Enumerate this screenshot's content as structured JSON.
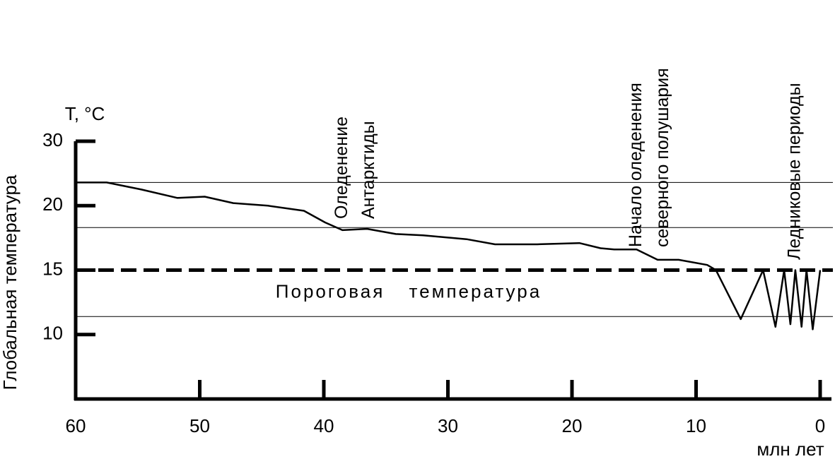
{
  "chart_data": {
    "type": "line",
    "y_unit": "T, °C",
    "ylabel": "Глобальная температура",
    "xlabel": "млн лет",
    "xlim": [
      60,
      0
    ],
    "xticks": [
      60,
      50,
      40,
      30,
      20,
      10,
      0
    ],
    "ylim": [
      5,
      30
    ],
    "yticks": [
      10,
      15,
      20,
      30
    ],
    "reference_lines": [
      23.6,
      18.3,
      11.4
    ],
    "threshold": {
      "value": 15,
      "label": "Пороговая температура"
    },
    "annotations": [
      {
        "x": 38.5,
        "lines": [
          "Оледенение",
          "Антарктиды"
        ]
      },
      {
        "x": 14.8,
        "lines": [
          "Начало оледенения",
          "северного полушария"
        ]
      },
      {
        "x": 2,
        "lines": [
          "Ледниковые периоды"
        ]
      }
    ],
    "series": [
      {
        "color": "#000000",
        "x": [
          60,
          57.5,
          54.7,
          51.8,
          49.6,
          47.3,
          44.5,
          41.6,
          39.9,
          38.5,
          36.5,
          34.2,
          32.0,
          28.5,
          26.2,
          22.8,
          19.4,
          17.7,
          16.6,
          14.8,
          13.1,
          11.4,
          9.1,
          8.4,
          6.4,
          4.6,
          3.6,
          2.9,
          2.4,
          2.0,
          1.5,
          1.1,
          0.6,
          0
        ],
        "values": [
          23.6,
          23.6,
          22.5,
          21.2,
          21.4,
          20.4,
          20.0,
          19.6,
          18.7,
          18.1,
          18.2,
          17.8,
          17.7,
          17.4,
          17.0,
          17.0,
          17.1,
          16.7,
          16.6,
          16.6,
          15.8,
          15.8,
          15.4,
          15.0,
          11.2,
          15.0,
          10.6,
          15.0,
          10.8,
          15.0,
          10.6,
          15.0,
          10.4,
          15.0
        ]
      }
    ]
  }
}
